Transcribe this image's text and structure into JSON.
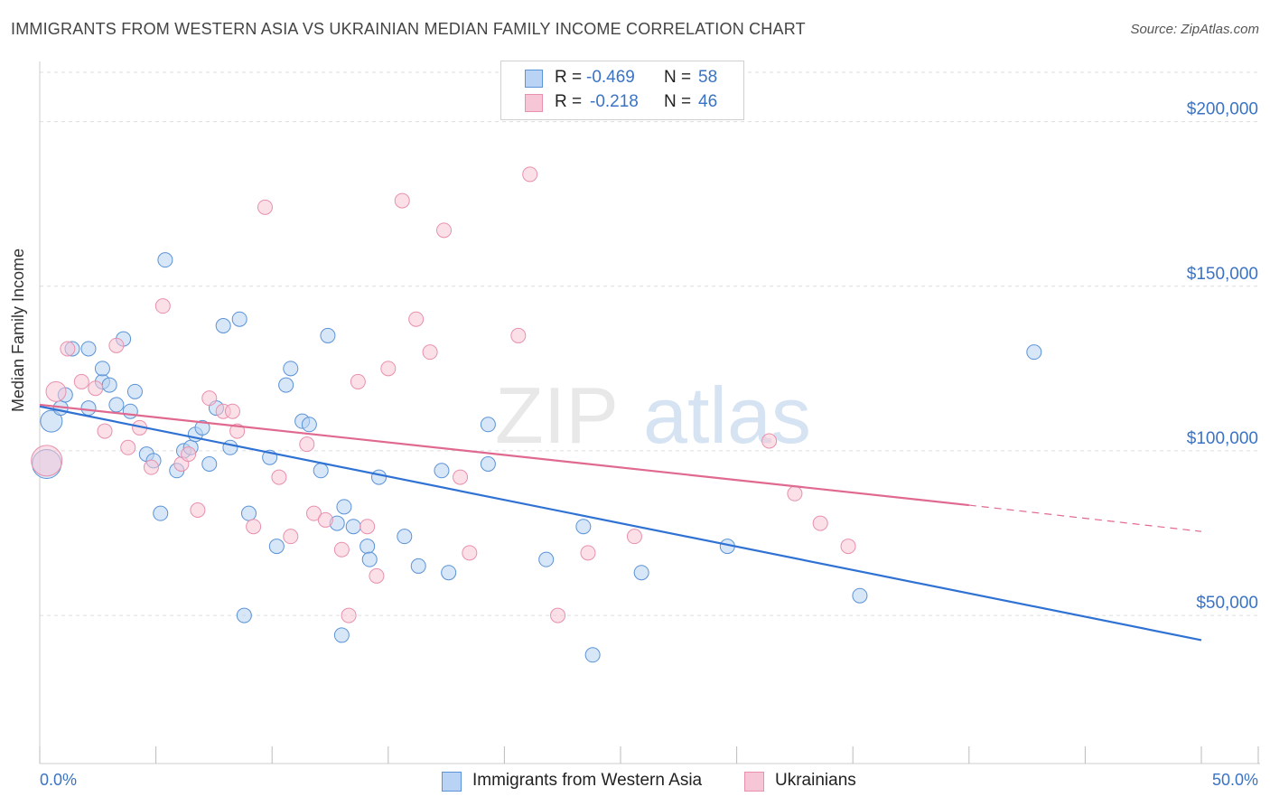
{
  "title": "IMMIGRANTS FROM WESTERN ASIA VS UKRAINIAN MEDIAN FAMILY INCOME CORRELATION CHART",
  "source": "Source: ZipAtlas.com",
  "watermark": {
    "zip": "ZIP",
    "atlas": "atlas"
  },
  "legend": {
    "rows": [
      {
        "r_label": "R =",
        "r_value": "-0.469",
        "n_label": "N =",
        "n_value": "58"
      },
      {
        "r_label": "R =",
        "r_value": "-0.218",
        "n_label": "N =",
        "n_value": "46"
      }
    ]
  },
  "colors": {
    "blue_fill": "#b8d3f3",
    "blue_stroke": "#5b93d6",
    "blue_line": "#2f72d3",
    "pink_fill": "#f7c6d6",
    "pink_stroke": "#e890ad",
    "pink_line": "#e0698f",
    "tick_text": "#3b73c4",
    "grid": "#dddddd"
  },
  "chart_data": {
    "type": "scatter",
    "title": "IMMIGRANTS FROM WESTERN ASIA VS UKRAINIAN MEDIAN FAMILY INCOME CORRELATION CHART",
    "xlabel": "",
    "ylabel": "Median Family Income",
    "xlim": [
      0,
      50
    ],
    "ylim": [
      5000,
      215000
    ],
    "x_tick_labels": [
      "0.0%",
      "50.0%"
    ],
    "y_ticks": [
      50000,
      100000,
      150000,
      200000
    ],
    "y_tick_labels": [
      "$50,000",
      "$100,000",
      "$150,000",
      "$200,000"
    ],
    "grid": true,
    "legend_position": "top-center",
    "series": [
      {
        "name": "Immigrants from Western Asia",
        "color": "#5b93d6",
        "R": -0.469,
        "N": 58,
        "trend": {
          "x": [
            0,
            50
          ],
          "y": [
            113500,
            42500
          ]
        },
        "points": [
          [
            0.5,
            109000
          ],
          [
            0.9,
            113000
          ],
          [
            1.1,
            117000
          ],
          [
            1.4,
            131000
          ],
          [
            2.1,
            113000
          ],
          [
            2.1,
            131000
          ],
          [
            2.7,
            121000
          ],
          [
            2.7,
            125000
          ],
          [
            3.0,
            120000
          ],
          [
            3.3,
            114000
          ],
          [
            3.6,
            134000
          ],
          [
            3.9,
            112000
          ],
          [
            4.1,
            118000
          ],
          [
            4.6,
            99000
          ],
          [
            4.9,
            97000
          ],
          [
            5.2,
            81000
          ],
          [
            5.4,
            158000
          ],
          [
            5.9,
            94000
          ],
          [
            6.2,
            100000
          ],
          [
            6.5,
            101000
          ],
          [
            6.7,
            105000
          ],
          [
            7.0,
            107000
          ],
          [
            7.3,
            96000
          ],
          [
            7.6,
            113000
          ],
          [
            7.9,
            138000
          ],
          [
            8.2,
            101000
          ],
          [
            8.6,
            140000
          ],
          [
            8.8,
            50000
          ],
          [
            9.0,
            81000
          ],
          [
            9.9,
            98000
          ],
          [
            10.2,
            71000
          ],
          [
            10.6,
            120000
          ],
          [
            10.8,
            125000
          ],
          [
            11.3,
            109000
          ],
          [
            11.6,
            108000
          ],
          [
            12.1,
            94000
          ],
          [
            12.4,
            135000
          ],
          [
            12.8,
            78000
          ],
          [
            13.1,
            83000
          ],
          [
            13.0,
            44000
          ],
          [
            13.5,
            77000
          ],
          [
            14.1,
            71000
          ],
          [
            14.2,
            67000
          ],
          [
            14.6,
            92000
          ],
          [
            15.7,
            74000
          ],
          [
            16.3,
            65000
          ],
          [
            17.3,
            94000
          ],
          [
            17.6,
            63000
          ],
          [
            19.3,
            96000
          ],
          [
            19.3,
            108000
          ],
          [
            21.8,
            67000
          ],
          [
            23.4,
            77000
          ],
          [
            23.8,
            38000
          ],
          [
            25.9,
            63000
          ],
          [
            29.6,
            71000
          ],
          [
            35.3,
            56000
          ],
          [
            42.8,
            130000
          ],
          [
            0.3,
            96000
          ]
        ]
      },
      {
        "name": "Ukrainians",
        "color": "#e890ad",
        "R": -0.218,
        "N": 46,
        "trend_solid": {
          "x": [
            0,
            40
          ],
          "y": [
            114000,
            83500
          ]
        },
        "trend_dashed": {
          "x": [
            40,
            50
          ],
          "y": [
            83500,
            75500
          ]
        },
        "points": [
          [
            0.3,
            97000
          ],
          [
            0.7,
            118000
          ],
          [
            1.2,
            131000
          ],
          [
            1.8,
            121000
          ],
          [
            2.4,
            119000
          ],
          [
            2.8,
            106000
          ],
          [
            3.3,
            132000
          ],
          [
            3.8,
            101000
          ],
          [
            4.3,
            107000
          ],
          [
            4.8,
            95000
          ],
          [
            5.3,
            144000
          ],
          [
            6.1,
            96000
          ],
          [
            6.4,
            99000
          ],
          [
            6.8,
            82000
          ],
          [
            7.3,
            116000
          ],
          [
            7.9,
            112000
          ],
          [
            8.3,
            112000
          ],
          [
            8.5,
            106000
          ],
          [
            9.2,
            77000
          ],
          [
            9.7,
            174000
          ],
          [
            10.3,
            92000
          ],
          [
            10.8,
            74000
          ],
          [
            11.5,
            102000
          ],
          [
            11.8,
            81000
          ],
          [
            12.3,
            79000
          ],
          [
            13.0,
            70000
          ],
          [
            13.3,
            50000
          ],
          [
            13.7,
            121000
          ],
          [
            14.1,
            77000
          ],
          [
            14.5,
            62000
          ],
          [
            15.0,
            125000
          ],
          [
            15.6,
            176000
          ],
          [
            16.2,
            140000
          ],
          [
            16.8,
            130000
          ],
          [
            17.4,
            167000
          ],
          [
            18.1,
            92000
          ],
          [
            18.5,
            69000
          ],
          [
            20.6,
            135000
          ],
          [
            21.1,
            184000
          ],
          [
            22.3,
            50000
          ],
          [
            23.6,
            69000
          ],
          [
            25.6,
            74000
          ],
          [
            31.4,
            103000
          ],
          [
            32.5,
            87000
          ],
          [
            33.6,
            78000
          ],
          [
            34.8,
            71000
          ]
        ]
      }
    ]
  }
}
